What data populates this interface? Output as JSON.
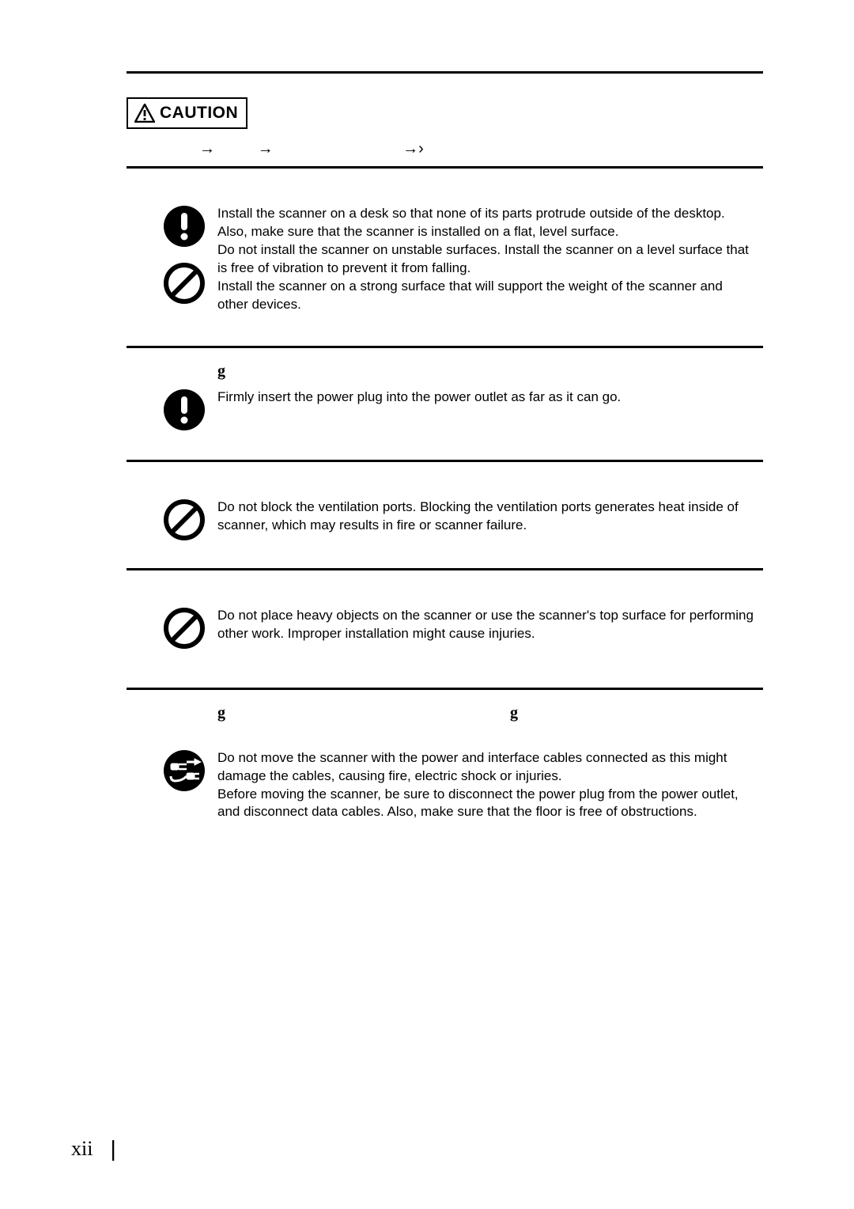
{
  "caution_label": "CAUTION",
  "sections": [
    {
      "icons": [
        "mandatory",
        "prohibit"
      ],
      "text": "Install the scanner on a desk so that none of its parts protrude outside of the desktop. Also, make sure that the scanner is installed on a flat, level surface.\nDo not install the scanner on unstable surfaces. Install the scanner on a level surface that is free of vibration to prevent it from falling.\nInstall the scanner on a strong surface that will support the weight of the scanner and other devices."
    },
    {
      "pre_glyph": "g",
      "icons": [
        "mandatory"
      ],
      "text": "Firmly insert the power plug into the power outlet as far as it can go."
    },
    {
      "icons": [
        "prohibit"
      ],
      "text": "Do not block the ventilation ports. Blocking the ventilation ports generates heat inside of scanner, which may results in fire or scanner failure."
    },
    {
      "icons": [
        "prohibit"
      ],
      "text": "Do not place heavy objects on the scanner or use the scanner's top surface for performing other work. Improper installation might cause injuries."
    },
    {
      "pre_glyph_double": [
        "g",
        "g"
      ],
      "icons": [
        "unplug"
      ],
      "text": "Do not move the scanner with the power and interface cables connected as this might damage the cables, causing fire, electric shock or injuries.\nBefore moving the scanner, be sure to disconnect the power plug from the power outlet, and disconnect data cables. Also, make sure that the floor is free of obstructions."
    }
  ],
  "page_number": "xii",
  "colors": {
    "text": "#000000",
    "background": "#ffffff"
  }
}
